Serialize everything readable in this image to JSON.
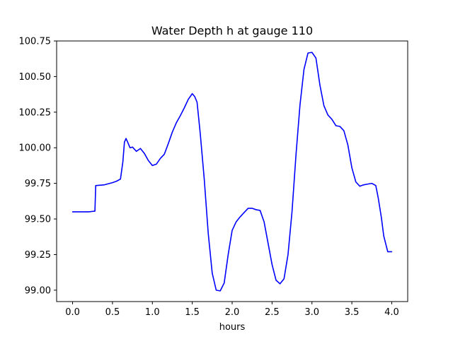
{
  "chart_data": {
    "type": "line",
    "title": "Water Depth h at gauge 110",
    "xlabel": "hours",
    "ylabel": "",
    "xlim": [
      -0.2,
      4.2
    ],
    "ylim": [
      98.92,
      100.75
    ],
    "xticks": [
      0.0,
      0.5,
      1.0,
      1.5,
      2.0,
      2.5,
      3.0,
      3.5,
      4.0
    ],
    "xtick_labels": [
      "0.0",
      "0.5",
      "1.0",
      "1.5",
      "2.0",
      "2.5",
      "3.0",
      "3.5",
      "4.0"
    ],
    "yticks": [
      99.0,
      99.25,
      99.5,
      99.75,
      100.0,
      100.25,
      100.5,
      100.75
    ],
    "ytick_labels": [
      "99.00",
      "99.25",
      "99.50",
      "99.75",
      "100.00",
      "100.25",
      "100.50",
      "100.75"
    ],
    "grid": false,
    "series": [
      {
        "color": "#0000ff",
        "x": [
          0.0,
          0.1,
          0.2,
          0.28,
          0.29,
          0.3,
          0.4,
          0.5,
          0.55,
          0.6,
          0.63,
          0.65,
          0.67,
          0.69,
          0.72,
          0.75,
          0.8,
          0.85,
          0.9,
          0.95,
          1.0,
          1.05,
          1.1,
          1.15,
          1.2,
          1.25,
          1.3,
          1.35,
          1.4,
          1.45,
          1.5,
          1.53,
          1.56,
          1.6,
          1.65,
          1.7,
          1.75,
          1.8,
          1.85,
          1.9,
          1.95,
          2.0,
          2.05,
          2.1,
          2.15,
          2.2,
          2.25,
          2.3,
          2.35,
          2.4,
          2.45,
          2.5,
          2.55,
          2.6,
          2.65,
          2.7,
          2.75,
          2.8,
          2.85,
          2.9,
          2.95,
          3.0,
          3.05,
          3.1,
          3.15,
          3.2,
          3.25,
          3.3,
          3.35,
          3.4,
          3.45,
          3.5,
          3.55,
          3.6,
          3.65,
          3.7,
          3.75,
          3.8,
          3.83,
          3.87,
          3.9,
          3.95,
          4.0
        ],
        "y": [
          99.55,
          99.55,
          99.55,
          99.555,
          99.735,
          99.735,
          99.74,
          99.755,
          99.765,
          99.78,
          99.9,
          100.04,
          100.065,
          100.04,
          100.0,
          100.005,
          99.975,
          99.995,
          99.96,
          99.91,
          99.875,
          99.885,
          99.925,
          99.955,
          100.03,
          100.11,
          100.175,
          100.225,
          100.28,
          100.34,
          100.38,
          100.36,
          100.32,
          100.1,
          99.78,
          99.4,
          99.12,
          99.0,
          98.995,
          99.05,
          99.25,
          99.42,
          99.48,
          99.515,
          99.545,
          99.575,
          99.575,
          99.565,
          99.56,
          99.48,
          99.33,
          99.18,
          99.07,
          99.045,
          99.08,
          99.25,
          99.55,
          99.95,
          100.3,
          100.55,
          100.665,
          100.67,
          100.63,
          100.44,
          100.295,
          100.23,
          100.2,
          100.155,
          100.15,
          100.12,
          100.02,
          99.86,
          99.76,
          99.73,
          99.74,
          99.745,
          99.75,
          99.735,
          99.65,
          99.51,
          99.38,
          99.27,
          99.27
        ]
      }
    ]
  }
}
